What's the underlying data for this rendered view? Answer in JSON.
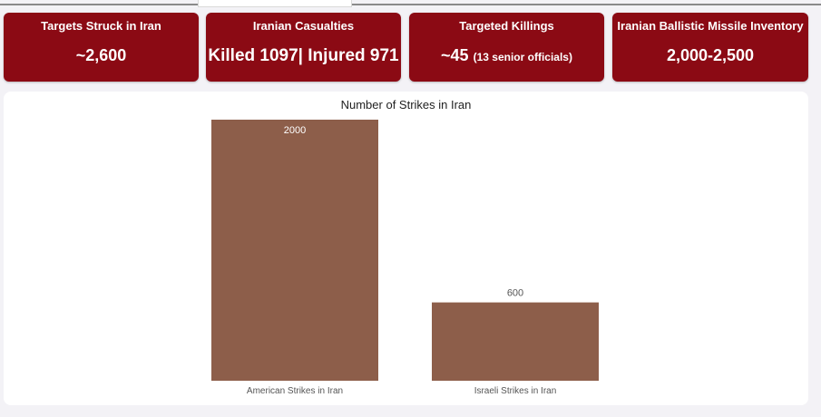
{
  "kpis": [
    {
      "title": "Targets Struck in Iran",
      "value": "~2,600",
      "sub": ""
    },
    {
      "title": "Iranian Casualties",
      "value": "Killed 1097| Injured 971",
      "sub": ""
    },
    {
      "title": "Targeted Killings",
      "value": "~45",
      "sub": "(13 senior officials)"
    },
    {
      "title": "Iranian Ballistic Missile Inventory",
      "value": "2,000-2,500",
      "sub": ""
    }
  ],
  "colors": {
    "kpi_background": "#8b0a14",
    "bar": "#8d5e4a"
  },
  "chart_data": {
    "type": "bar",
    "title": "Number of Strikes in Iran",
    "categories": [
      "American Strikes in Iran",
      "Israeli Strikes in Iran"
    ],
    "values": [
      2000,
      600
    ],
    "data_labels": [
      "2000",
      "600"
    ],
    "xlabel": "",
    "ylabel": "",
    "ylim": [
      0,
      2000
    ],
    "grid": false,
    "legend": "none"
  }
}
